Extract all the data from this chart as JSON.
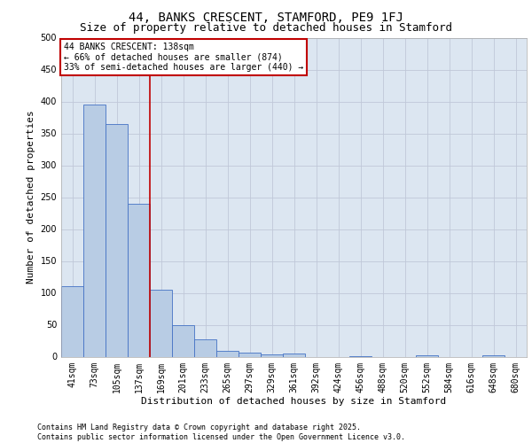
{
  "title": "44, BANKS CRESCENT, STAMFORD, PE9 1FJ",
  "subtitle": "Size of property relative to detached houses in Stamford",
  "xlabel": "Distribution of detached houses by size in Stamford",
  "ylabel": "Number of detached properties",
  "categories": [
    "41sqm",
    "73sqm",
    "105sqm",
    "137sqm",
    "169sqm",
    "201sqm",
    "233sqm",
    "265sqm",
    "297sqm",
    "329sqm",
    "361sqm",
    "392sqm",
    "424sqm",
    "456sqm",
    "488sqm",
    "520sqm",
    "552sqm",
    "584sqm",
    "616sqm",
    "648sqm",
    "680sqm"
  ],
  "bar_values": [
    110,
    395,
    365,
    240,
    105,
    50,
    27,
    9,
    6,
    4,
    5,
    0,
    0,
    1,
    0,
    0,
    2,
    0,
    0,
    2,
    0
  ],
  "bar_color": "#b8cce4",
  "bar_edge_color": "#4472c4",
  "grid_color": "#c0c8d8",
  "bg_color": "#dce6f1",
  "annotation_line1": "44 BANKS CRESCENT: 138sqm",
  "annotation_line2": "← 66% of detached houses are smaller (874)",
  "annotation_line3": "33% of semi-detached houses are larger (440) →",
  "annotation_box_color": "#c00000",
  "vline_x_index": 3,
  "vline_color": "#c00000",
  "ylim": [
    0,
    500
  ],
  "footer_line1": "Contains HM Land Registry data © Crown copyright and database right 2025.",
  "footer_line2": "Contains public sector information licensed under the Open Government Licence v3.0.",
  "title_fontsize": 10,
  "subtitle_fontsize": 9,
  "xlabel_fontsize": 8,
  "ylabel_fontsize": 8,
  "tick_fontsize": 7,
  "footer_fontsize": 6,
  "annot_fontsize": 7
}
